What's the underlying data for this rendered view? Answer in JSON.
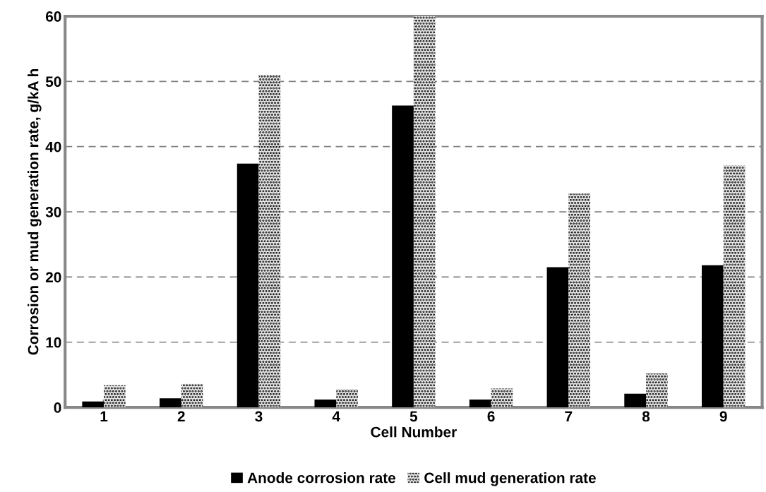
{
  "chart_data": {
    "type": "bar",
    "xlabel": "Cell Number",
    "ylabel": "Corrosion or mud generation rate, g/kA h",
    "categories": [
      "1",
      "2",
      "3",
      "4",
      "5",
      "6",
      "7",
      "8",
      "9"
    ],
    "series": [
      {
        "name": "Anode corrosion rate",
        "color": "#000000",
        "values": [
          0.9,
          1.4,
          37.4,
          1.2,
          46.3,
          1.2,
          21.5,
          2.1,
          21.8
        ]
      },
      {
        "name": "Cell mud generation rate",
        "color": "#e6e6e6",
        "values": [
          3.4,
          3.6,
          51,
          2.8,
          60,
          2.9,
          32.8,
          5.2,
          37.1
        ]
      }
    ],
    "ylim": [
      0,
      60
    ],
    "yticks": [
      0,
      10,
      20,
      30,
      40,
      50,
      60
    ],
    "grid": "y",
    "legend": "bottom"
  }
}
